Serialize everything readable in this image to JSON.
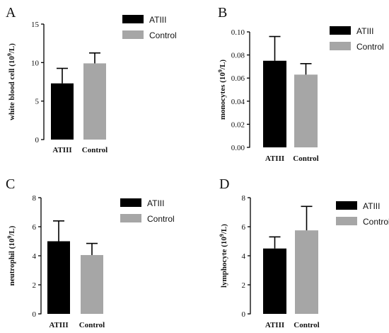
{
  "legend": {
    "atiii": "ATIII",
    "control": "Control"
  },
  "colors": {
    "atiii": "#000000",
    "control": "#a6a6a6"
  },
  "chart_data": [
    {
      "panel": "A",
      "type": "bar",
      "categories": [
        "ATIII",
        "Control"
      ],
      "values": [
        7.3,
        9.9
      ],
      "errors": [
        1.95,
        1.35
      ],
      "ylabel_main": "white blood cell (10",
      "ylabel_sup": "9",
      "ylabel_unit": "/L)",
      "ylim": [
        0,
        15
      ],
      "yticks": [
        "0",
        "5",
        "10",
        "15"
      ],
      "legend_position": "top-right"
    },
    {
      "panel": "B",
      "type": "bar",
      "categories": [
        "ATIII",
        "Control"
      ],
      "values": [
        0.075,
        0.063
      ],
      "errors": [
        0.021,
        0.0095
      ],
      "ylabel_main": "monocytes (10",
      "ylabel_sup": "9",
      "ylabel_unit": "/L)",
      "ylim": [
        0,
        0.1
      ],
      "yticks": [
        "0.00",
        "0.02",
        "0.04",
        "0.06",
        "0.08",
        "0.10"
      ],
      "legend_position": "top-right"
    },
    {
      "panel": "C",
      "type": "bar",
      "categories": [
        "ATIII",
        "Control"
      ],
      "values": [
        5.0,
        4.05
      ],
      "errors": [
        1.4,
        0.8
      ],
      "ylabel_main": "neutrophil (10",
      "ylabel_sup": "9",
      "ylabel_unit": "/L)",
      "ylim": [
        0,
        8
      ],
      "yticks": [
        "0",
        "2",
        "4",
        "6",
        "8"
      ],
      "legend_position": "top-right"
    },
    {
      "panel": "D",
      "type": "bar",
      "categories": [
        "ATIII",
        "Control"
      ],
      "values": [
        4.5,
        5.75
      ],
      "errors": [
        0.8,
        1.65
      ],
      "ylabel_main": "lymphocyte (10",
      "ylabel_sup": "9",
      "ylabel_unit": "/L)",
      "ylim": [
        0,
        8
      ],
      "yticks": [
        "0",
        "2",
        "4",
        "6",
        "8"
      ],
      "legend_position": "top-right"
    }
  ]
}
